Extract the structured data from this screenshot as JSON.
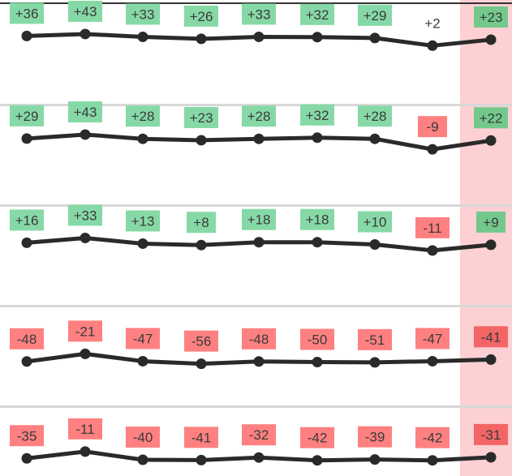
{
  "chart_data": {
    "type": "line",
    "highlight_column_color": "#fdd0d3",
    "colors": {
      "line": "#2a2a2a",
      "positive_box": "#86d9a6",
      "negative_box": "#ff8080",
      "highlight_positive_box": "#73c98c",
      "highlight_negative_box": "#f46565",
      "label_text": "#3a3a3a",
      "separator": "#d8d8d8",
      "top_border": "#333333"
    },
    "series": [
      {
        "values": [
          36,
          43,
          33,
          26,
          33,
          32,
          29,
          2,
          23
        ],
        "labels": [
          "+36",
          "+43",
          "+33",
          "+26",
          "+33",
          "+32",
          "+29",
          "+2",
          "+23"
        ]
      },
      {
        "values": [
          29,
          43,
          28,
          23,
          28,
          32,
          28,
          -9,
          22
        ],
        "labels": [
          "+29",
          "+43",
          "+28",
          "+23",
          "+28",
          "+32",
          "+28",
          "-9",
          "+22"
        ]
      },
      {
        "values": [
          16,
          33,
          13,
          8,
          18,
          18,
          10,
          -11,
          9
        ],
        "labels": [
          "+16",
          "+33",
          "+13",
          "+8",
          "+18",
          "+18",
          "+10",
          "-11",
          "+9"
        ]
      },
      {
        "values": [
          -48,
          -21,
          -47,
          -56,
          -48,
          -50,
          -51,
          -47,
          -41
        ],
        "labels": [
          "-48",
          "-21",
          "-47",
          "-56",
          "-48",
          "-50",
          "-51",
          "-47",
          "-41"
        ]
      },
      {
        "values": [
          -35,
          -11,
          -40,
          -41,
          -32,
          -42,
          -39,
          -42,
          -31
        ],
        "labels": [
          "-35",
          "-11",
          "-40",
          "-41",
          "-32",
          "-42",
          "-39",
          "-42",
          "-31"
        ]
      }
    ]
  }
}
